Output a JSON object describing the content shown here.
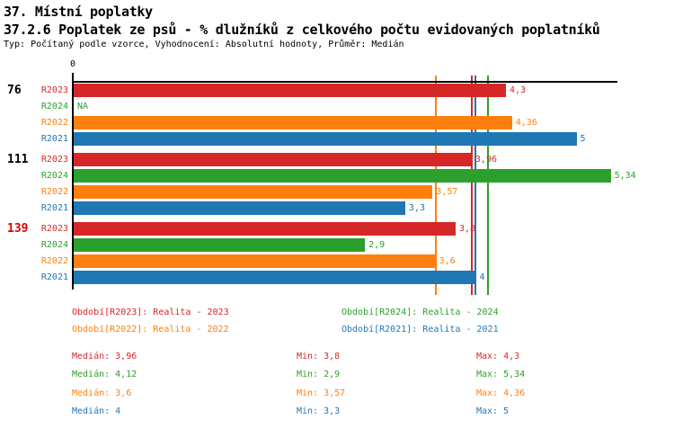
{
  "header": {
    "title": "37. Místní poplatky",
    "subtitle": "37.2.6 Poplatek ze psů - % dlužníků z celkového počtu evidovaných poplatníků",
    "meta": "Typ: Počítaný podle vzorce, Vyhodnocení: Absolutní hodnoty, Průměr: Medián"
  },
  "chart_data": {
    "type": "bar",
    "orientation": "horizontal",
    "title": "37.2.6 Poplatek ze psů - % dlužníků z celkového počtu evidovaných poplatníků",
    "xlabel": "",
    "ylabel": "",
    "xlim": [
      0,
      5.4
    ],
    "axis": {
      "zero_label": "0"
    },
    "grid": false,
    "legend_position": "bottom",
    "series_colors": {
      "R2023": "#d62728",
      "R2024": "#2ca02c",
      "R2022": "#ff7f0e",
      "R2021": "#1f77b4"
    },
    "groups": [
      {
        "label": "76",
        "label_color": "#000000",
        "bars": [
          {
            "series": "R2023",
            "value": 4.3,
            "display": "4,3",
            "color": "#d62728"
          },
          {
            "series": "R2024",
            "value": null,
            "display": "NA",
            "color": "#2ca02c"
          },
          {
            "series": "R2022",
            "value": 4.36,
            "display": "4,36",
            "color": "#ff7f0e"
          },
          {
            "series": "R2021",
            "value": 5,
            "display": "5",
            "color": "#1f77b4"
          }
        ]
      },
      {
        "label": "111",
        "label_color": "#000000",
        "bars": [
          {
            "series": "R2023",
            "value": 3.96,
            "display": "3,96",
            "color": "#d62728"
          },
          {
            "series": "R2024",
            "value": 5.34,
            "display": "5,34",
            "color": "#2ca02c"
          },
          {
            "series": "R2022",
            "value": 3.57,
            "display": "3,57",
            "color": "#ff7f0e"
          },
          {
            "series": "R2021",
            "value": 3.3,
            "display": "3,3",
            "color": "#1f77b4"
          }
        ]
      },
      {
        "label": "139",
        "label_color": "#dd0000",
        "bars": [
          {
            "series": "R2023",
            "value": 3.8,
            "display": "3,8",
            "color": "#d62728"
          },
          {
            "series": "R2024",
            "value": 2.9,
            "display": "2,9",
            "color": "#2ca02c"
          },
          {
            "series": "R2022",
            "value": 3.6,
            "display": "3,6",
            "color": "#ff7f0e"
          },
          {
            "series": "R2021",
            "value": 4,
            "display": "4",
            "color": "#1f77b4"
          }
        ]
      }
    ],
    "median_lines": [
      {
        "series": "R2022",
        "value": 3.6,
        "color": "#ff7f0e"
      },
      {
        "series": "R2023",
        "value": 3.96,
        "color": "#d62728"
      },
      {
        "series": "R2021",
        "value": 4.0,
        "color": "#1f77b4"
      },
      {
        "series": "R2024",
        "value": 4.12,
        "color": "#2ca02c"
      }
    ]
  },
  "legend": {
    "items": [
      {
        "label": "Období[R2023]: Realita - 2023",
        "color": "#d62728"
      },
      {
        "label": "Období[R2024]: Realita - 2024",
        "color": "#2ca02c"
      },
      {
        "label": "Období[R2022]: Realita - 2022",
        "color": "#ff7f0e"
      },
      {
        "label": "Období[R2021]: Realita - 2021",
        "color": "#1f77b4"
      }
    ]
  },
  "stats": {
    "rows": [
      {
        "median": "Medián: 3,96",
        "min": "Min: 3,8",
        "max": "Max: 4,3",
        "color": "#d62728"
      },
      {
        "median": "Medián: 4,12",
        "min": "Min: 2,9",
        "max": "Max: 5,34",
        "color": "#2ca02c"
      },
      {
        "median": "Medián: 3,6",
        "min": "Min: 3,57",
        "max": "Max: 4,36",
        "color": "#ff7f0e"
      },
      {
        "median": "Medián: 4",
        "min": "Min: 3,3",
        "max": "Max: 5",
        "color": "#1f77b4"
      }
    ]
  }
}
